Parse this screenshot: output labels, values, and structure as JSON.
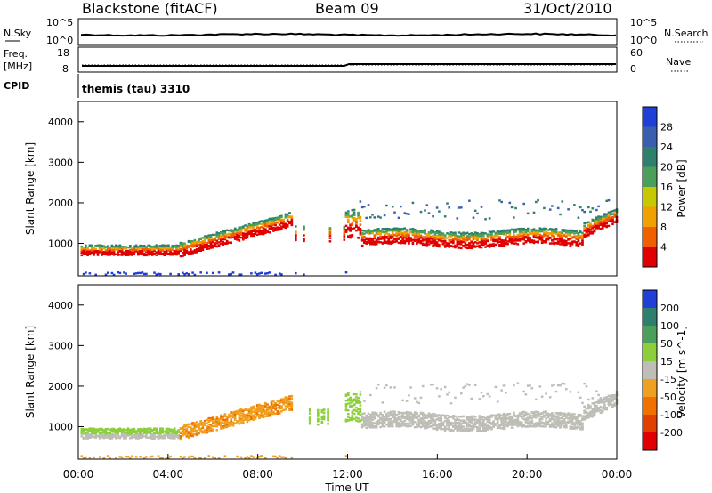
{
  "header": {
    "title": "Blackstone (fitACF)",
    "beam": "Beam 09",
    "date": "31/Oct/2010"
  },
  "noise_panel": {
    "left_label": "N.Sky",
    "right_label": "N.Search",
    "left_ticks": [
      "10^5",
      "10^0"
    ],
    "right_ticks": [
      "10^5",
      "10^0"
    ]
  },
  "freq_panel": {
    "left_label_top": "Freq.",
    "left_label_unit": "[MHz]",
    "right_label": "Nave",
    "left_ticks": [
      "18",
      "8"
    ],
    "right_ticks": [
      "60",
      "0"
    ]
  },
  "cpid": {
    "label": "CPID",
    "value": "themis (tau) 3310"
  },
  "colors": {
    "power_scale": [
      "#1f3fd6",
      "#3a5fb0",
      "#2f7f6f",
      "#4a9f5a",
      "#c8c800",
      "#f0a000",
      "#f06000",
      "#e00000"
    ],
    "velocity_scale": [
      "#1f3fd6",
      "#2f7f6f",
      "#4a9f5a",
      "#8ccf3a",
      "#bebeb6",
      "#f0a020",
      "#f07000",
      "#e04000",
      "#e00000"
    ]
  },
  "chart_data": [
    {
      "type": "heatmap",
      "name": "power",
      "ylabel": "Slant Range [km]",
      "yticks": [
        "4000",
        "3000",
        "2000",
        "1000"
      ],
      "ylim": [
        200,
        4500
      ],
      "xlabel": "Time UT",
      "xticks": [
        "00:00",
        "04:00",
        "08:00",
        "12:00",
        "16:00",
        "20:00",
        "00:00"
      ],
      "xlim_hours": [
        0,
        24
      ],
      "colorbar": {
        "label": "Power [dB]",
        "ticks": [
          "28",
          "24",
          "20",
          "16",
          "12",
          "8",
          "4"
        ],
        "range": [
          0,
          32
        ]
      }
    },
    {
      "type": "heatmap",
      "name": "velocity",
      "ylabel": "Slant Range [km]",
      "yticks": [
        "4000",
        "3000",
        "2000",
        "1000"
      ],
      "ylim": [
        200,
        4500
      ],
      "xlabel": "Time UT",
      "xticks": [
        "00:00",
        "04:00",
        "08:00",
        "12:00",
        "16:00",
        "20:00",
        "00:00"
      ],
      "xlim_hours": [
        0,
        24
      ],
      "colorbar": {
        "label": "Velocity [m s^-1]",
        "ticks": [
          "200",
          "100",
          "50",
          "15",
          "-15",
          "-50",
          "-100",
          "-200"
        ]
      }
    }
  ]
}
